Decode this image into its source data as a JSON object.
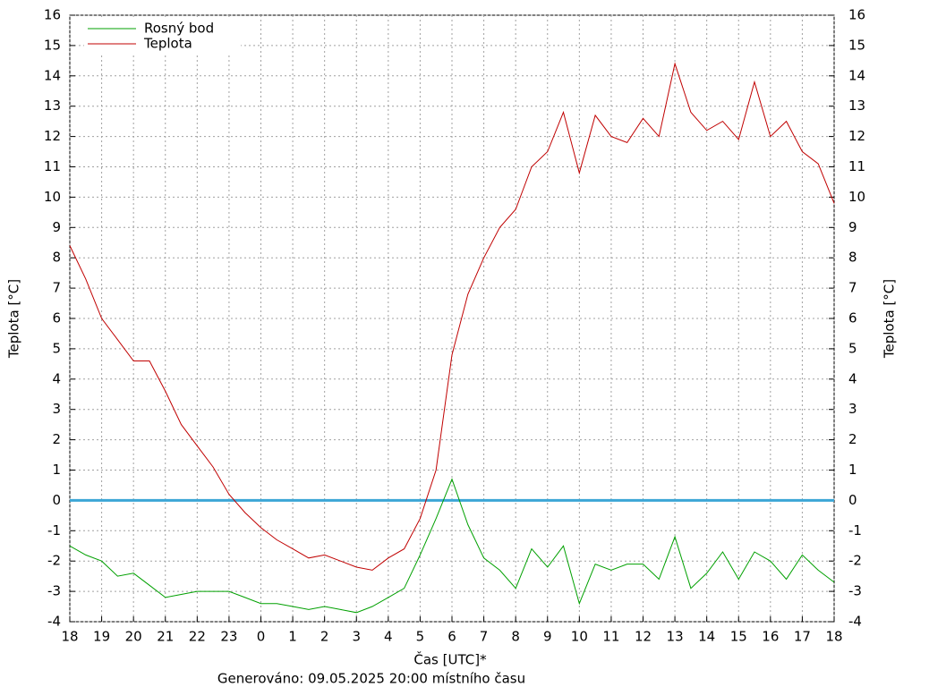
{
  "chart_data": {
    "type": "line",
    "x_label": "Čas [UTC]*",
    "y_label": "Teplota [°C]",
    "y2_label": "Teplota [°C]",
    "footer": "Generováno: 09.05.2025 20:00 místního času",
    "x": [
      0,
      0.5,
      1,
      1.5,
      2,
      2.5,
      3,
      3.5,
      4,
      4.5,
      5,
      5.5,
      6,
      6.5,
      7,
      7.5,
      8,
      8.5,
      9,
      9.5,
      10,
      10.5,
      11,
      11.5,
      12,
      12.5,
      13,
      13.5,
      14,
      14.5,
      15,
      15.5,
      16,
      16.5,
      17,
      17.5,
      18,
      18.5,
      19,
      19.5,
      20,
      20.5,
      21,
      21.5,
      22,
      22.5,
      23,
      23.5,
      24
    ],
    "series": [
      {
        "name": "Rosný bod",
        "color": "#00a000",
        "values": [
          -1.5,
          -1.8,
          -2.0,
          -2.5,
          -2.4,
          -2.8,
          -3.2,
          -3.1,
          -3.0,
          -3.0,
          -3.0,
          -3.2,
          -3.4,
          -3.4,
          -3.5,
          -3.6,
          -3.5,
          -3.6,
          -3.7,
          -3.5,
          -3.2,
          -2.9,
          -1.8,
          -0.6,
          0.7,
          -0.8,
          -1.9,
          -2.3,
          -2.9,
          -1.6,
          -2.2,
          -1.5,
          -3.4,
          -2.1,
          -2.3,
          -2.1,
          -2.1,
          -2.6,
          -1.2,
          -2.9,
          -2.4,
          -1.7,
          -2.6,
          -1.7,
          -2.0,
          -2.6,
          -1.8,
          -2.3,
          -2.7
        ]
      },
      {
        "name": "Teplota",
        "color": "#c00000",
        "values": [
          8.4,
          7.3,
          6.0,
          5.3,
          4.6,
          4.6,
          3.6,
          2.5,
          1.8,
          1.1,
          0.2,
          -0.4,
          -0.9,
          -1.3,
          -1.6,
          -1.9,
          -1.8,
          -2.0,
          -2.2,
          -2.3,
          -1.9,
          -1.6,
          -0.6,
          1.0,
          4.8,
          6.8,
          8.0,
          9.0,
          9.6,
          11.0,
          11.5,
          12.8,
          10.8,
          12.7,
          12.0,
          11.8,
          12.6,
          12.0,
          14.4,
          12.8,
          12.2,
          12.5,
          11.9,
          13.8,
          12.0,
          12.5,
          11.5,
          11.1,
          9.8
        ]
      }
    ],
    "zero_line": {
      "value": 0,
      "color": "#3ba6d6"
    },
    "xlim": [
      0,
      24
    ],
    "xticks": [
      {
        "value": 0,
        "label": "18"
      },
      {
        "value": 1,
        "label": "19"
      },
      {
        "value": 2,
        "label": "20"
      },
      {
        "value": 3,
        "label": "21"
      },
      {
        "value": 4,
        "label": "22"
      },
      {
        "value": 5,
        "label": "23"
      },
      {
        "value": 6,
        "label": "0"
      },
      {
        "value": 7,
        "label": "1"
      },
      {
        "value": 8,
        "label": "2"
      },
      {
        "value": 9,
        "label": "3"
      },
      {
        "value": 10,
        "label": "4"
      },
      {
        "value": 11,
        "label": "5"
      },
      {
        "value": 12,
        "label": "6"
      },
      {
        "value": 13,
        "label": "7"
      },
      {
        "value": 14,
        "label": "8"
      },
      {
        "value": 15,
        "label": "9"
      },
      {
        "value": 16,
        "label": "10"
      },
      {
        "value": 17,
        "label": "11"
      },
      {
        "value": 18,
        "label": "12"
      },
      {
        "value": 19,
        "label": "13"
      },
      {
        "value": 20,
        "label": "14"
      },
      {
        "value": 21,
        "label": "15"
      },
      {
        "value": 22,
        "label": "16"
      },
      {
        "value": 23,
        "label": "17"
      },
      {
        "value": 24,
        "label": "18"
      }
    ],
    "ylim": [
      -4,
      16
    ],
    "yticks": [
      -4,
      -3,
      -2,
      -1,
      0,
      1,
      2,
      3,
      4,
      5,
      6,
      7,
      8,
      9,
      10,
      11,
      12,
      13,
      14,
      15,
      16
    ],
    "y2lim": [
      -4,
      16
    ],
    "y2ticks": [
      -4,
      -3,
      -2,
      -1,
      0,
      1,
      2,
      3,
      4,
      5,
      6,
      7,
      8,
      9,
      10,
      11,
      12,
      13,
      14,
      15,
      16
    ],
    "grid": true,
    "legend": "top-left"
  }
}
